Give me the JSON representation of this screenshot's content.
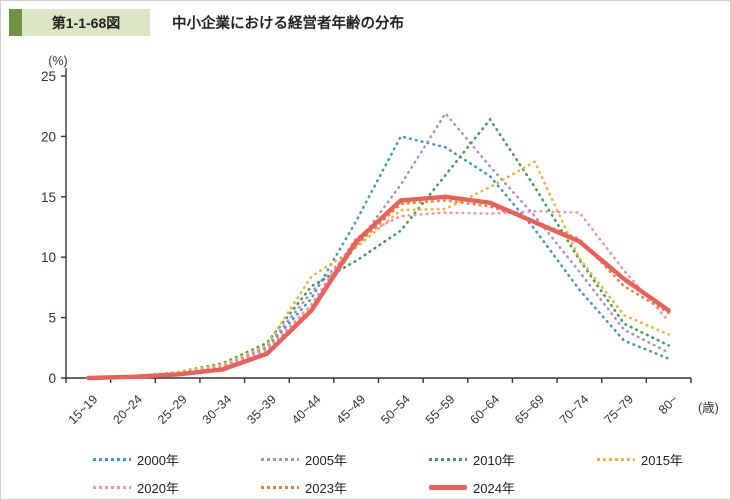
{
  "header": {
    "fig_label": "第1-1-68図",
    "title": "中小企業における経営者年齢の分布",
    "accent_color": "#6E9346",
    "label_bg": "#DCE6C5"
  },
  "chart_data": {
    "type": "line",
    "title": "中小企業における経営者年齢の分布",
    "categories": [
      "15~19",
      "20~24",
      "25~29",
      "30~34",
      "35~39",
      "40~44",
      "45~49",
      "50~54",
      "55~59",
      "60~64",
      "65~69",
      "70~74",
      "75~79",
      "80~"
    ],
    "x_unit_label": "(歳)",
    "y_unit_label": "(%)",
    "ylim": [
      0,
      25
    ],
    "y_ticks": [
      0,
      5,
      10,
      15,
      20,
      25
    ],
    "grid": false,
    "legend_position": "bottom",
    "axis_color": "#333333",
    "tick_label_color": "#2a3547",
    "series": [
      {
        "name": "2000年",
        "color": "#3A9BD5",
        "style": "dotted",
        "values": [
          0.0,
          0.1,
          0.4,
          1.0,
          2.5,
          6.6,
          13.0,
          20.0,
          19.1,
          16.7,
          12.3,
          7.3,
          3.1,
          1.6
        ]
      },
      {
        "name": "2005年",
        "color": "#B48FC8",
        "style": "dotted",
        "values": [
          0.0,
          0.1,
          0.4,
          1.0,
          2.6,
          7.1,
          11.0,
          16.0,
          21.9,
          17.5,
          13.4,
          8.8,
          4.0,
          2.1
        ]
      },
      {
        "name": "2010年",
        "color": "#42A152",
        "style": "dotted",
        "values": [
          0.0,
          0.1,
          0.5,
          1.2,
          2.9,
          7.6,
          9.7,
          12.2,
          16.8,
          21.4,
          15.8,
          9.8,
          4.5,
          2.7
        ]
      },
      {
        "name": "2015年",
        "color": "#F2B33D",
        "style": "dotted",
        "values": [
          0.0,
          0.1,
          0.5,
          1.1,
          2.7,
          8.4,
          10.8,
          13.9,
          14.0,
          15.8,
          17.9,
          9.9,
          5.2,
          3.6
        ]
      },
      {
        "name": "2020年",
        "color": "#F48FB9",
        "style": "dotted",
        "values": [
          0.0,
          0.1,
          0.4,
          0.9,
          2.3,
          6.1,
          11.6,
          13.4,
          13.7,
          13.6,
          13.8,
          13.7,
          8.9,
          4.7
        ]
      },
      {
        "name": "2023年",
        "color": "#ED8237",
        "style": "dotted",
        "values": [
          0.0,
          0.1,
          0.3,
          0.8,
          2.1,
          5.8,
          11.0,
          14.4,
          14.7,
          14.2,
          13.0,
          11.5,
          7.6,
          5.4
        ]
      },
      {
        "name": "2024年",
        "color": "#E96159",
        "style": "solid",
        "values": [
          0.0,
          0.1,
          0.3,
          0.7,
          2.0,
          5.6,
          11.3,
          14.7,
          15.0,
          14.5,
          12.9,
          11.3,
          8.2,
          5.6
        ]
      }
    ]
  }
}
